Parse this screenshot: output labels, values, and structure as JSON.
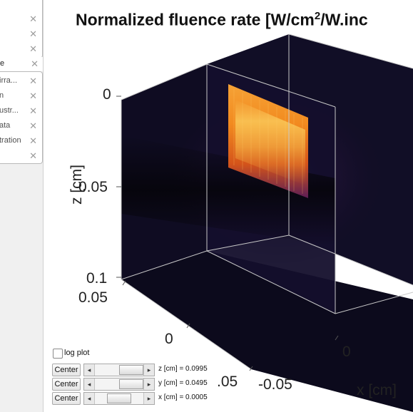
{
  "sidebar": {
    "top_rows": [
      {
        "label": ""
      },
      {
        "label": ""
      },
      {
        "label": ""
      }
    ],
    "selected_row": {
      "label": "e"
    },
    "rows": [
      {
        "label": "irra..."
      },
      {
        "label": "n"
      },
      {
        "label": "ustr..."
      },
      {
        "label": "ata"
      },
      {
        "label": "tration"
      },
      {
        "label": ""
      }
    ],
    "close_glyph": "✕"
  },
  "figure": {
    "title_main": "Normalized fluence rate [W/cm",
    "title_sup": "2",
    "title_tail": "/W.inc",
    "z_label": "z [cm]",
    "x_label": "x [cm]",
    "z_ticks": [
      "0",
      "0.05",
      "0.1"
    ],
    "y_ticks": [
      "0.05",
      "0",
      ".05"
    ],
    "x_ticks": [
      "-0.05",
      "0"
    ]
  },
  "controls": {
    "log_plot_label": "log plot",
    "log_plot_checked": false,
    "center_label": "Center",
    "sliders": [
      {
        "readout": "z [cm] = 0.0995",
        "position": 0.99
      },
      {
        "readout": "y [cm] = 0.0495",
        "position": 0.99
      },
      {
        "readout": "x [cm] = 0.0005",
        "position": 0.5
      }
    ]
  },
  "colors": {
    "cube_face": "#0d0b1e",
    "edge": "#c8c8c8",
    "hot_orange": "#f28a1f",
    "hot_yellow": "#f9c647",
    "glow_purple": "#4a1f5e"
  }
}
